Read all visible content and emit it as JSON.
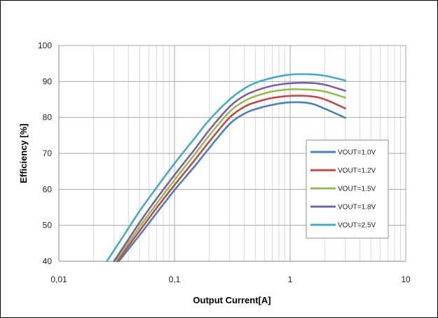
{
  "chart_data": {
    "type": "line",
    "title": "",
    "xlabel": "Output Current[A]",
    "ylabel": "Efficiency [%]",
    "x_scale": "log",
    "xlim": [
      0.01,
      10
    ],
    "ylim": [
      40,
      100
    ],
    "x_ticks": [
      {
        "value": 0.01,
        "label": "0,01"
      },
      {
        "value": 0.1,
        "label": "0,1"
      },
      {
        "value": 1,
        "label": "1"
      },
      {
        "value": 10,
        "label": "10"
      }
    ],
    "y_ticks": [
      {
        "value": 40,
        "label": "40"
      },
      {
        "value": 50,
        "label": "50"
      },
      {
        "value": 60,
        "label": "60"
      },
      {
        "value": 70,
        "label": "70"
      },
      {
        "value": 80,
        "label": "80"
      },
      {
        "value": 90,
        "label": "90"
      },
      {
        "value": 100,
        "label": "100"
      }
    ],
    "grid": true,
    "legend_position": "bottom-right",
    "series": [
      {
        "name": "VOUT=1.0V",
        "color": "#4a7ebb",
        "x": [
          0.033,
          0.05,
          0.07,
          0.1,
          0.15,
          0.2,
          0.3,
          0.4,
          0.5,
          0.7,
          1.0,
          1.5,
          2.0,
          3.0
        ],
        "y": [
          40,
          47.3,
          53.4,
          59.8,
          66.5,
          71.5,
          78.2,
          81.0,
          82.3,
          83.5,
          84.2,
          83.9,
          82.4,
          79.9
        ]
      },
      {
        "name": "VOUT=1.2V",
        "color": "#be4b48",
        "x": [
          0.032,
          0.05,
          0.07,
          0.1,
          0.15,
          0.2,
          0.3,
          0.4,
          0.5,
          0.7,
          1.0,
          1.5,
          2.0,
          3.0
        ],
        "y": [
          40,
          48.5,
          54.8,
          61.2,
          68.2,
          73.3,
          80.0,
          82.9,
          84.2,
          85.4,
          86.0,
          85.9,
          85.0,
          82.5
        ]
      },
      {
        "name": "VOUT=1.5V",
        "color": "#98b954",
        "x": [
          0.031,
          0.05,
          0.07,
          0.1,
          0.15,
          0.2,
          0.3,
          0.4,
          0.5,
          0.7,
          1.0,
          1.5,
          2.0,
          3.0
        ],
        "y": [
          40,
          49.6,
          56.0,
          62.6,
          69.8,
          75.0,
          81.6,
          84.5,
          85.9,
          87.2,
          87.8,
          87.7,
          87.2,
          85.5
        ]
      },
      {
        "name": "VOUT=1.8V",
        "color": "#7d60a0",
        "x": [
          0.03,
          0.05,
          0.07,
          0.1,
          0.15,
          0.2,
          0.3,
          0.4,
          0.5,
          0.7,
          1.0,
          1.5,
          2.0,
          3.0
        ],
        "y": [
          40,
          50.8,
          57.4,
          64.0,
          71.2,
          76.5,
          83.0,
          86.0,
          87.4,
          88.8,
          89.5,
          89.6,
          89.1,
          87.4
        ]
      },
      {
        "name": "VOUT=2.5V",
        "color": "#46aac5",
        "x": [
          0.026,
          0.04,
          0.05,
          0.07,
          0.1,
          0.15,
          0.2,
          0.3,
          0.4,
          0.5,
          0.7,
          1.0,
          1.5,
          2.0,
          3.0
        ],
        "y": [
          40,
          49.2,
          54.0,
          60.5,
          67.2,
          74.3,
          79.3,
          85.0,
          88.0,
          89.6,
          91.0,
          91.9,
          92.0,
          91.6,
          90.3
        ]
      }
    ]
  }
}
